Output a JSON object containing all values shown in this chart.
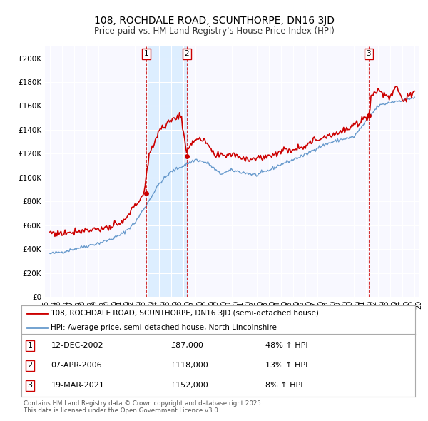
{
  "title": "108, ROCHDALE ROAD, SCUNTHORPE, DN16 3JD",
  "subtitle": "Price paid vs. HM Land Registry's House Price Index (HPI)",
  "legend_line1": "108, ROCHDALE ROAD, SCUNTHORPE, DN16 3JD (semi-detached house)",
  "legend_line2": "HPI: Average price, semi-detached house, North Lincolnshire",
  "footer": "Contains HM Land Registry data © Crown copyright and database right 2025.\nThis data is licensed under the Open Government Licence v3.0.",
  "sale_color": "#cc0000",
  "hpi_color": "#6699cc",
  "shade_color": "#ddeeff",
  "ylim": [
    0,
    210000
  ],
  "yticks": [
    0,
    20000,
    40000,
    60000,
    80000,
    100000,
    120000,
    140000,
    160000,
    180000,
    200000
  ],
  "ytick_labels": [
    "£0",
    "£20K",
    "£40K",
    "£60K",
    "£80K",
    "£100K",
    "£120K",
    "£140K",
    "£160K",
    "£180K",
    "£200K"
  ],
  "sales": [
    {
      "date": "2002-12-12",
      "price": 87000,
      "label": "1"
    },
    {
      "date": "2006-04-07",
      "price": 118000,
      "label": "2"
    },
    {
      "date": "2021-03-19",
      "price": 152000,
      "label": "3"
    }
  ],
  "sale_info": [
    {
      "label": "1",
      "date": "12-DEC-2002",
      "price": "£87,000",
      "hpi": "48% ↑ HPI"
    },
    {
      "label": "2",
      "date": "07-APR-2006",
      "price": "£118,000",
      "hpi": "13% ↑ HPI"
    },
    {
      "label": "3",
      "date": "19-MAR-2021",
      "price": "£152,000",
      "hpi": "8% ↑ HPI"
    }
  ],
  "vline_color": "#cc0000",
  "chart_bg": "#f8f8ff",
  "grid_color": "#ddddee",
  "hpi_anchors_t": [
    1995.0,
    1996.0,
    1997.0,
    1998.0,
    1999.0,
    2000.0,
    2001.0,
    2002.0,
    2003.0,
    2004.0,
    2005.0,
    2006.0,
    2007.0,
    2008.0,
    2009.0,
    2010.0,
    2011.0,
    2012.0,
    2013.0,
    2014.0,
    2015.0,
    2016.0,
    2017.0,
    2018.0,
    2019.0,
    2020.0,
    2021.0,
    2022.0,
    2023.0,
    2024.0,
    2025.0
  ],
  "hpi_anchors_v": [
    36000,
    37500,
    40000,
    42500,
    45000,
    48000,
    53000,
    62000,
    78000,
    95000,
    105000,
    110000,
    115000,
    112000,
    103000,
    106000,
    104000,
    102000,
    106000,
    111000,
    115000,
    119000,
    125000,
    129000,
    132000,
    134000,
    147000,
    160000,
    163000,
    165000,
    167000
  ],
  "prop_anchors_t": [
    1995.0,
    1996.0,
    1997.0,
    1998.0,
    1999.0,
    2000.0,
    2001.0,
    2002.75,
    2003.2,
    2004.0,
    2005.0,
    2005.8,
    2006.25,
    2006.5,
    2007.0,
    2008.0,
    2008.5,
    2009.0,
    2010.0,
    2011.0,
    2012.0,
    2013.0,
    2014.0,
    2015.0,
    2016.0,
    2017.0,
    2018.0,
    2019.0,
    2020.0,
    2021.2,
    2021.5,
    2022.0,
    2023.0,
    2023.5,
    2024.0,
    2025.0
  ],
  "prop_anchors_v": [
    54000,
    53000,
    55000,
    56000,
    57000,
    58000,
    62000,
    87000,
    120000,
    140000,
    148000,
    153000,
    118000,
    128000,
    133000,
    128000,
    118000,
    118000,
    120000,
    116000,
    116000,
    118000,
    122000,
    124000,
    127000,
    132000,
    136000,
    138000,
    143000,
    152000,
    170000,
    173000,
    167000,
    178000,
    165000,
    170000
  ]
}
